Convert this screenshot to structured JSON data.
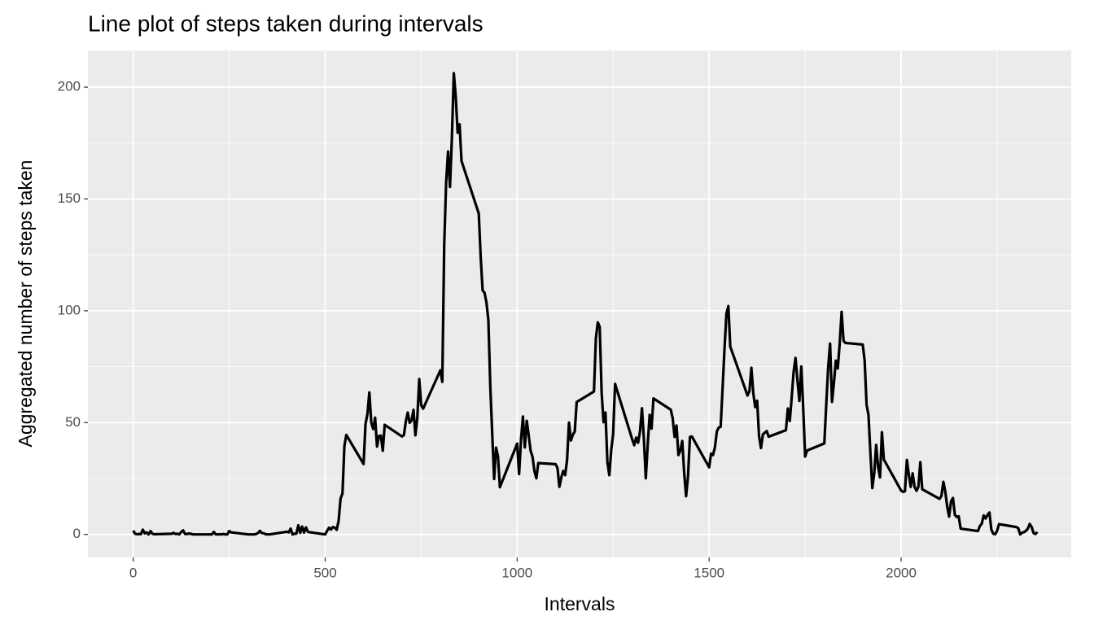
{
  "chart_data": {
    "type": "line",
    "title": "Line plot of steps taken during intervals",
    "x_label": "Intervals",
    "y_label": "Aggregated number of steps taken",
    "color": "#000000",
    "grid": true,
    "xlim": [
      -118,
      2443
    ],
    "ylim": [
      -10.3,
      216.4
    ],
    "xticks": [
      0,
      500,
      1000,
      1500,
      2000
    ],
    "yticks": [
      0,
      50,
      100,
      150,
      200
    ],
    "x": [
      0,
      5,
      10,
      15,
      20,
      25,
      30,
      35,
      40,
      45,
      50,
      55,
      100,
      105,
      110,
      115,
      120,
      125,
      130,
      135,
      140,
      145,
      150,
      155,
      200,
      205,
      210,
      215,
      220,
      225,
      230,
      235,
      240,
      245,
      250,
      255,
      300,
      305,
      310,
      315,
      320,
      325,
      330,
      335,
      340,
      345,
      350,
      355,
      400,
      405,
      410,
      415,
      420,
      425,
      430,
      435,
      440,
      445,
      450,
      455,
      500,
      505,
      510,
      515,
      520,
      525,
      530,
      535,
      540,
      545,
      550,
      555,
      600,
      605,
      610,
      615,
      620,
      625,
      630,
      635,
      640,
      645,
      650,
      655,
      700,
      705,
      710,
      715,
      720,
      725,
      730,
      735,
      740,
      745,
      750,
      755,
      800,
      805,
      810,
      815,
      820,
      825,
      830,
      835,
      840,
      845,
      850,
      855,
      900,
      905,
      910,
      915,
      920,
      925,
      930,
      935,
      940,
      945,
      950,
      955,
      1000,
      1005,
      1010,
      1015,
      1020,
      1025,
      1030,
      1035,
      1040,
      1045,
      1050,
      1055,
      1100,
      1105,
      1110,
      1115,
      1120,
      1125,
      1130,
      1135,
      1140,
      1145,
      1150,
      1155,
      1200,
      1205,
      1210,
      1215,
      1220,
      1225,
      1230,
      1235,
      1240,
      1245,
      1250,
      1255,
      1300,
      1305,
      1310,
      1315,
      1320,
      1325,
      1330,
      1335,
      1340,
      1345,
      1350,
      1355,
      1400,
      1405,
      1410,
      1415,
      1420,
      1425,
      1430,
      1435,
      1440,
      1445,
      1450,
      1455,
      1500,
      1505,
      1510,
      1515,
      1520,
      1525,
      1530,
      1535,
      1540,
      1545,
      1550,
      1555,
      1600,
      1605,
      1610,
      1615,
      1620,
      1625,
      1630,
      1635,
      1640,
      1645,
      1650,
      1655,
      1700,
      1705,
      1710,
      1715,
      1720,
      1725,
      1730,
      1735,
      1740,
      1745,
      1750,
      1755,
      1800,
      1805,
      1810,
      1815,
      1820,
      1825,
      1830,
      1835,
      1840,
      1845,
      1850,
      1855,
      1900,
      1905,
      1910,
      1915,
      1920,
      1925,
      1930,
      1935,
      1940,
      1945,
      1950,
      1955,
      2000,
      2005,
      2010,
      2015,
      2020,
      2025,
      2030,
      2035,
      2040,
      2045,
      2050,
      2055,
      2100,
      2105,
      2110,
      2115,
      2120,
      2125,
      2130,
      2135,
      2140,
      2145,
      2150,
      2155,
      2200,
      2205,
      2210,
      2215,
      2220,
      2225,
      2230,
      2235,
      2240,
      2245,
      2250,
      2255,
      2300,
      2305,
      2310,
      2315,
      2320,
      2325,
      2330,
      2335,
      2340,
      2345,
      2350,
      2355
    ],
    "values": [
      1.7,
      0.3,
      0.1,
      0.2,
      0.1,
      2.1,
      0.5,
      0.9,
      0,
      1.5,
      0.3,
      0.1,
      0.3,
      0.7,
      0.2,
      0.3,
      0,
      1.1,
      1.8,
      0.2,
      0.2,
      0.4,
      0.3,
      0,
      0,
      0,
      1.1,
      0,
      0,
      0.1,
      0,
      0.2,
      0,
      0,
      1.5,
      0.9,
      0,
      0,
      0,
      0,
      0.2,
      0.6,
      1.6,
      0.6,
      0.5,
      0.1,
      0,
      0,
      1.2,
      0.9,
      2.6,
      0,
      0.3,
      0.4,
      4.1,
      0.7,
      3.5,
      0.8,
      3.1,
      1.1,
      0,
      1.6,
      3,
      2.2,
      3.3,
      3,
      2.1,
      6.1,
      16,
      18.3,
      39.5,
      44.5,
      31.5,
      49.3,
      53.8,
      63.5,
      50,
      47.1,
      52.2,
      39.3,
      44,
      44.2,
      37.4,
      49,
      43.8,
      44.4,
      50.5,
      54.5,
      49.9,
      51,
      55.7,
      44.3,
      52.3,
      69.5,
      57.8,
      56.2,
      73.4,
      68.2,
      129.4,
      157.5,
      171.2,
      155.4,
      177.3,
      206.2,
      195.9,
      179.6,
      183.4,
      167,
      143.5,
      124,
      109.1,
      108.1,
      103.7,
      95.9,
      66.2,
      45.2,
      24.8,
      38.8,
      35,
      21.1,
      40.6,
      27,
      42.4,
      52.7,
      38.9,
      50.8,
      44.3,
      37.4,
      34.7,
      28.3,
      25.1,
      31.9,
      31.4,
      29.7,
      21.3,
      25.5,
      28.4,
      26.5,
      33.4,
      50,
      42,
      44.6,
      46,
      59.2,
      63.9,
      87.7,
      94.8,
      92.8,
      63.4,
      50.2,
      54.5,
      32.4,
      26.5,
      37.7,
      45,
      67.3,
      42.3,
      39.9,
      43.3,
      41,
      46.2,
      56.4,
      42.8,
      25.1,
      40,
      53.5,
      47.3,
      60.8,
      55.8,
      52,
      43.6,
      48.7,
      35.5,
      37.5,
      41.8,
      27.5,
      17.1,
      26.1,
      43.6,
      43.8,
      30,
      36.1,
      35.5,
      38.8,
      46,
      47.8,
      48.1,
      65.3,
      82.9,
      98.7,
      102.1,
      84,
      62.1,
      64.1,
      74.5,
      63.2,
      56.9,
      59.8,
      43.9,
      38.6,
      44.7,
      45.5,
      46.2,
      43.7,
      46.6,
      56.3,
      50.7,
      61.2,
      72.7,
      78.9,
      68.9,
      59.7,
      75.1,
      56.5,
      34.8,
      37.5,
      40.7,
      58,
      74.7,
      85.3,
      59.3,
      67.8,
      77.7,
      74.2,
      85.3,
      99.5,
      86.6,
      85.6,
      84.9,
      77.8,
      58,
      53.4,
      36.3,
      20.7,
      27.4,
      40,
      30.2,
      25.5,
      45.7,
      33.5,
      19.6,
      19,
      19.3,
      33.3,
      26.8,
      21.2,
      27.3,
      21.3,
      19.5,
      21.3,
      32.3,
      20.2,
      15.9,
      17.2,
      23.5,
      19.2,
      12.5,
      8,
      14.7,
      16.3,
      8.7,
      7.8,
      8.1,
      2.6,
      1.5,
      3.7,
      4.8,
      8.5,
      7.1,
      8.7,
      9.8,
      2.2,
      0.3,
      0.1,
      1.6,
      4.6,
      3.3,
      2.8,
      0,
      0.8,
      1,
      1.6,
      2.6,
      4.7,
      3.3,
      0.6,
      0.2,
      1.1
    ]
  }
}
